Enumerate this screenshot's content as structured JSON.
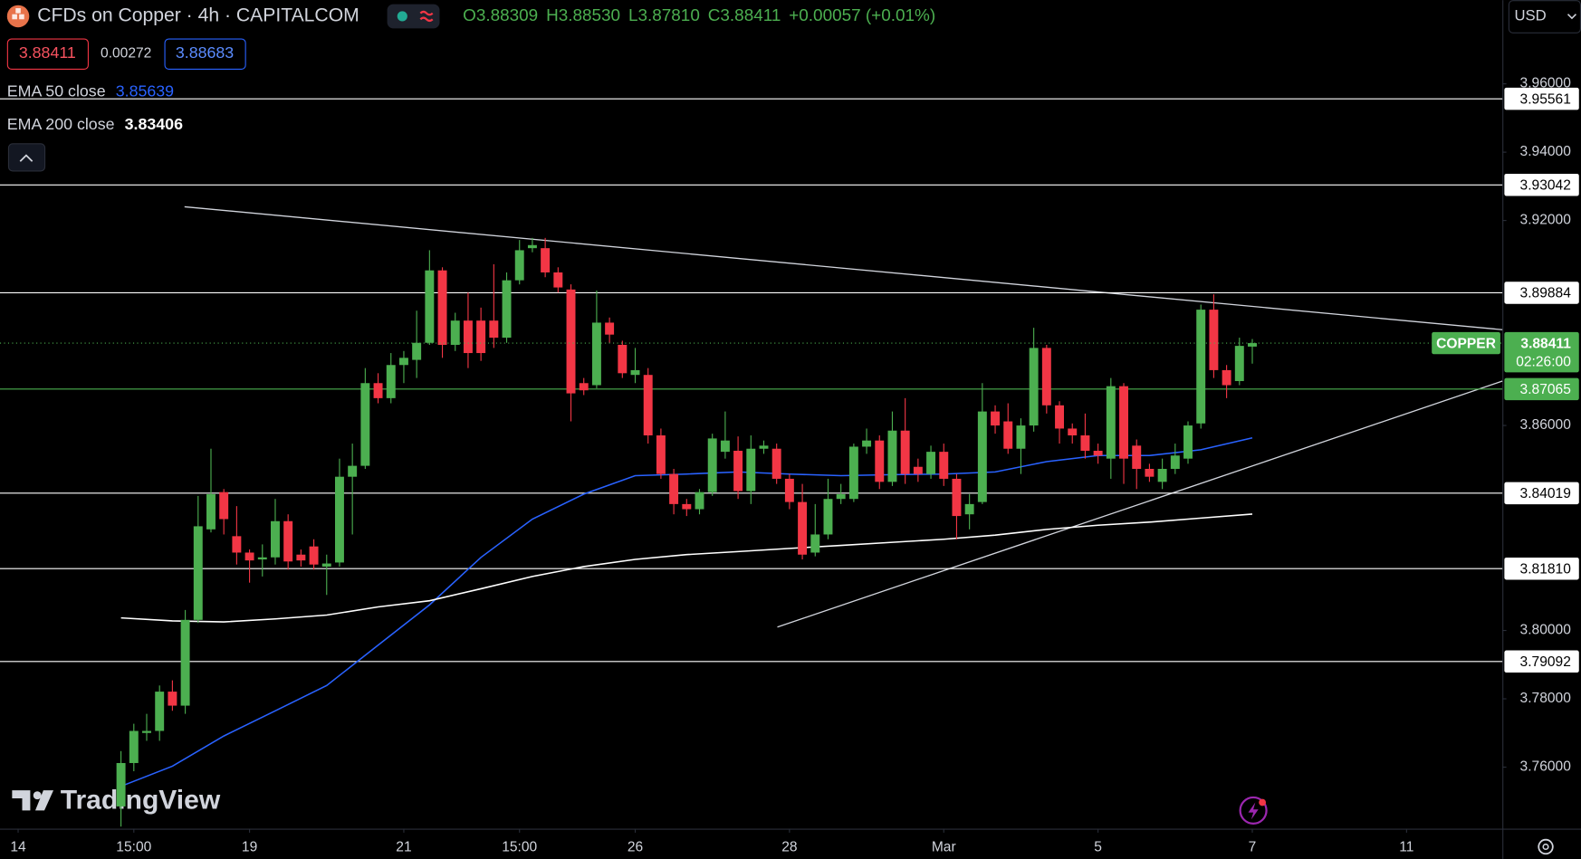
{
  "header": {
    "symbol": "CFDs on Copper · 4h · CAPITALCOM",
    "ohlc_keys": [
      "O",
      "H",
      "L",
      "C"
    ],
    "change": "+0.00057 (+0.01%)",
    "spread": 0.00272,
    "ask": 3.88683
  },
  "currency": "USD",
  "watermark": "TradingView",
  "chart_data": {
    "type": "candlestick",
    "symbol_label": "COPPER",
    "countdown": "02:26:00",
    "up_color": "#4caf50",
    "down_color": "#f23645",
    "open": [
      3.7485,
      3.7612,
      3.77,
      3.7706,
      3.7821,
      3.778,
      3.8031,
      3.8296,
      3.8405,
      3.8276,
      3.8228,
      3.8208,
      3.8214,
      3.832,
      3.8222,
      3.8246,
      3.8187,
      3.8199,
      3.845,
      3.8482,
      3.8724,
      3.868,
      3.8777,
      3.8792,
      3.8842,
      3.9054,
      3.8836,
      3.8907,
      3.8907,
      3.8907,
      3.8857,
      3.9025,
      3.9119,
      3.9119,
      3.9048,
      3.8998,
      3.8724,
      3.8718,
      3.8901,
      3.8836,
      3.8748,
      3.8748,
      3.8571,
      3.8458,
      3.837,
      3.8355,
      3.8405,
      3.8523,
      3.8526,
      3.8408,
      3.8532,
      3.8532,
      3.8444,
      3.8376,
      3.8228,
      3.8281,
      3.8385,
      3.8385,
      3.8538,
      3.8556,
      3.8435,
      3.8585,
      3.8479,
      3.8458,
      3.8523,
      3.8444,
      3.834,
      3.8376,
      3.8641,
      3.8612,
      3.8532,
      3.86,
      3.8827,
      3.8659,
      3.8591,
      3.8571,
      3.8526,
      3.8503,
      3.8715,
      3.8541,
      3.8473,
      3.8435,
      3.8473,
      3.8503,
      3.8606,
      3.8939,
      3.8762,
      3.873,
      3.88309
    ],
    "high": [
      3.7647,
      3.7727,
      3.7756,
      3.7839,
      3.7854,
      3.806,
      3.8394,
      3.8532,
      3.8414,
      3.8364,
      3.8237,
      3.8252,
      3.8385,
      3.834,
      3.8237,
      3.8267,
      3.8222,
      3.8503,
      3.8547,
      3.8768,
      3.8753,
      3.8812,
      3.8818,
      3.8936,
      3.9113,
      3.9063,
      3.893,
      3.8989,
      3.8945,
      3.9072,
      3.9048,
      3.9143,
      3.9149,
      3.9149,
      3.9063,
      3.9013,
      3.8739,
      3.8995,
      3.8916,
      3.8848,
      3.8827,
      3.8768,
      3.8591,
      3.8473,
      3.8385,
      3.8414,
      3.8576,
      3.8641,
      3.8568,
      3.8571,
      3.8556,
      3.8547,
      3.8458,
      3.8429,
      3.837,
      3.8444,
      3.8429,
      3.8547,
      3.8591,
      3.8571,
      3.8641,
      3.868,
      3.8503,
      3.8541,
      3.8547,
      3.8458,
      3.8399,
      3.8724,
      3.8659,
      3.8665,
      3.8621,
      3.8886,
      3.8836,
      3.8671,
      3.8606,
      3.8635,
      3.8547,
      3.8739,
      3.8724,
      3.8559,
      3.8488,
      3.8503,
      3.8547,
      3.8612,
      3.8954,
      3.8984,
      3.8777,
      3.8857,
      3.8853
    ],
    "low": [
      3.7426,
      3.7588,
      3.7677,
      3.7677,
      3.7765,
      3.7756,
      3.8022,
      3.8287,
      3.8281,
      3.8193,
      3.814,
      3.8158,
      3.8193,
      3.8178,
      3.8187,
      3.8178,
      3.8104,
      3.8187,
      3.8281,
      3.8473,
      3.8665,
      3.8665,
      3.8724,
      3.8739,
      3.8836,
      3.8798,
      3.8818,
      3.8768,
      3.8789,
      3.8827,
      3.8842,
      3.9013,
      3.9107,
      3.9034,
      3.8989,
      3.8612,
      3.8689,
      3.8709,
      3.8842,
      3.8739,
      3.8724,
      3.8547,
      3.8444,
      3.834,
      3.8335,
      3.834,
      3.8394,
      3.8503,
      3.8385,
      3.837,
      3.8517,
      3.8429,
      3.8355,
      3.8208,
      3.8217,
      3.8267,
      3.837,
      3.8376,
      3.8517,
      3.8414,
      3.8423,
      3.8429,
      3.8435,
      3.8444,
      3.8423,
      3.8267,
      3.8296,
      3.837,
      3.8576,
      3.8517,
      3.8458,
      3.8582,
      3.8635,
      3.8547,
      3.8547,
      3.8503,
      3.8488,
      3.8444,
      3.8429,
      3.8414,
      3.8435,
      3.8414,
      3.8458,
      3.8488,
      3.8591,
      3.8739,
      3.868,
      3.8718,
      3.8781
    ],
    "close": [
      3.7612,
      3.7706,
      3.7706,
      3.7821,
      3.778,
      3.8031,
      3.8305,
      3.8399,
      3.8326,
      3.8228,
      3.8205,
      3.8214,
      3.832,
      3.8202,
      3.8205,
      3.8193,
      3.8196,
      3.845,
      3.8482,
      3.8724,
      3.868,
      3.8777,
      3.8798,
      3.8842,
      3.9054,
      3.8836,
      3.8907,
      3.8812,
      3.8812,
      3.8857,
      3.9025,
      3.9113,
      3.9128,
      3.9048,
      3.9004,
      3.8694,
      3.8703,
      3.8901,
      3.8866,
      3.8753,
      3.8762,
      3.8571,
      3.8458,
      3.837,
      3.8355,
      3.8405,
      3.8562,
      3.8556,
      3.8408,
      3.8532,
      3.8541,
      3.8444,
      3.8376,
      3.8222,
      3.8281,
      3.8385,
      3.8399,
      3.8538,
      3.8556,
      3.8435,
      3.8585,
      3.8458,
      3.8458,
      3.8523,
      3.8444,
      3.8335,
      3.837,
      3.8641,
      3.86,
      3.8532,
      3.86,
      3.8827,
      3.8659,
      3.8591,
      3.8571,
      3.8526,
      3.8512,
      3.8715,
      3.8503,
      3.8473,
      3.845,
      3.8473,
      3.8512,
      3.86,
      3.8939,
      3.8762,
      3.8718,
      3.8833,
      3.88411
    ],
    "last_ohlc_labels": [
      "3.88309",
      "3.88530",
      "3.87810",
      "3.88411"
    ],
    "series": [
      {
        "name": "EMA 50 close",
        "color": "#2962ff",
        "x": [
          0,
          4,
          8,
          12,
          16,
          20,
          24,
          28,
          32,
          36,
          40,
          44,
          48,
          52,
          56,
          60,
          64,
          68,
          72,
          76,
          80,
          84,
          88
        ],
        "values": [
          3.7544,
          3.7603,
          3.7691,
          3.7765,
          3.7839,
          3.7957,
          3.8075,
          3.8214,
          3.8326,
          3.8399,
          3.8453,
          3.8458,
          3.8464,
          3.8458,
          3.8453,
          3.8456,
          3.8458,
          3.8464,
          3.8494,
          3.8512,
          3.8512,
          3.8529,
          3.85639
        ]
      },
      {
        "name": "EMA 200 close",
        "color": "#ffffff",
        "x": [
          0,
          4,
          8,
          12,
          16,
          20,
          24,
          28,
          32,
          36,
          40,
          44,
          48,
          52,
          56,
          60,
          64,
          68,
          72,
          76,
          80,
          84,
          88
        ],
        "values": [
          3.8037,
          3.8028,
          3.8025,
          3.8034,
          3.8045,
          3.8069,
          3.8087,
          3.8122,
          3.8158,
          3.8187,
          3.8208,
          3.8222,
          3.8231,
          3.824,
          3.8249,
          3.8258,
          3.8267,
          3.8279,
          3.8296,
          3.8308,
          3.8317,
          3.8329,
          3.83406
        ]
      }
    ],
    "levels": [
      {
        "value": 3.95561,
        "label": "3.95561",
        "color": "#ffffff"
      },
      {
        "value": 3.93042,
        "label": "3.93042",
        "color": "#ffffff"
      },
      {
        "value": 3.89884,
        "label": "3.89884",
        "color": "#ffffff"
      },
      {
        "value": 3.87065,
        "label": "3.87065",
        "color": "#4caf50"
      },
      {
        "value": 3.84019,
        "label": "3.84019",
        "color": "#ffffff"
      },
      {
        "value": 3.8181,
        "label": "3.81810",
        "color": "#ffffff"
      },
      {
        "value": 3.79092,
        "label": "3.79092",
        "color": "#ffffff"
      }
    ],
    "ylim": [
      3.742,
      3.9845
    ],
    "yticks": [
      {
        "value": 3.96,
        "label": "3.96000"
      },
      {
        "value": 3.94,
        "label": "3.94000"
      },
      {
        "value": 3.92,
        "label": "3.92000"
      },
      {
        "value": 3.86,
        "label": "3.86000"
      },
      {
        "value": 3.8,
        "label": "3.80000"
      },
      {
        "value": 3.78,
        "label": "3.78000"
      },
      {
        "value": 3.76,
        "label": "3.76000"
      }
    ],
    "xlim": [
      -9.41,
      107.45
    ],
    "xticks": [
      {
        "value": -8,
        "label": "14"
      },
      {
        "value": 1,
        "label": "15:00"
      },
      {
        "value": 10,
        "label": "19"
      },
      {
        "value": 22,
        "label": "21"
      },
      {
        "value": 31,
        "label": "15:00"
      },
      {
        "value": 40,
        "label": "26"
      },
      {
        "value": 52,
        "label": "28"
      },
      {
        "value": 64,
        "label": "Mar"
      },
      {
        "value": 76,
        "label": "5"
      },
      {
        "value": 88,
        "label": "7"
      },
      {
        "value": 100,
        "label": "11"
      }
    ],
    "grid": false
  }
}
